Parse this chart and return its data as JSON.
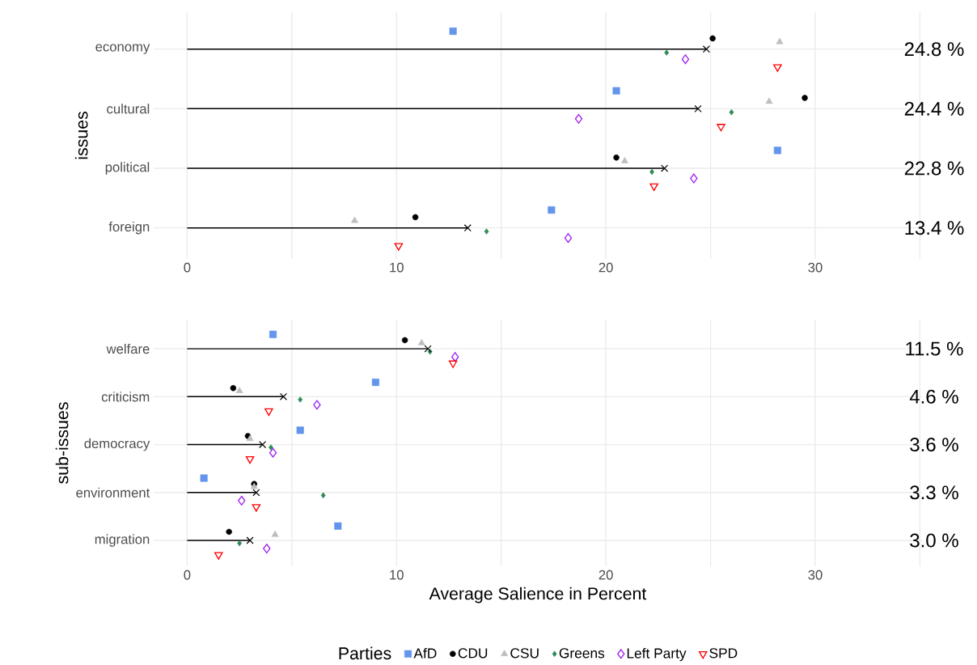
{
  "chart_data": [
    {
      "type": "lollipop",
      "orientation": "horizontal",
      "ylabel": "issues",
      "categories": [
        "economy",
        "cultural",
        "political",
        "foreign"
      ],
      "xlim": [
        -1.6,
        35.1
      ],
      "xticks": [
        0,
        {
          "value": 5,
          "label": null
        },
        10,
        {
          "value": 15,
          "label": null
        },
        20,
        {
          "value": 25,
          "label": null
        },
        30,
        {
          "value": 35,
          "label": null
        }
      ],
      "grid": true,
      "series": [
        {
          "type": "scatter",
          "color": "#6495ed",
          "marker": "square",
          "values": [
            12.7,
            20.5,
            28.2,
            17.4
          ]
        },
        {
          "type": "scatter",
          "color": "#000000",
          "marker": "circle",
          "values": [
            25.1,
            29.5,
            20.5,
            10.9
          ]
        },
        {
          "type": "scatter",
          "color": "#bebebe",
          "marker": "triangle",
          "values": [
            28.3,
            27.8,
            20.9,
            8.0
          ]
        },
        {
          "type": "scatter",
          "color": "#2e8b57",
          "marker": "diamond",
          "values": [
            22.9,
            26.0,
            22.2,
            14.3
          ]
        },
        {
          "type": "scatter",
          "color": "#a020f0",
          "marker": "diamond-open",
          "values": [
            23.8,
            18.7,
            24.2,
            18.2
          ]
        },
        {
          "type": "scatter",
          "color": "#ff0000",
          "marker": "triangle-down-open",
          "values": [
            28.2,
            25.5,
            22.3,
            10.1
          ]
        },
        {
          "color": "#000000",
          "marker": "cross",
          "values": [
            24.8,
            24.4,
            22.8,
            13.4
          ],
          "value_labels": [
            "24.8 %",
            "24.4 %",
            "22.8 %",
            "13.4 %"
          ]
        }
      ]
    },
    {
      "type": "lollipop",
      "orientation": "horizontal",
      "ylabel": "sub-issues",
      "xlabel": "Average Salience in Percent",
      "categories": [
        "welfare",
        "criticism",
        "democracy",
        "environment",
        "migration"
      ],
      "xlim": [
        -1.6,
        35.1
      ],
      "xticks": [
        0,
        {
          "value": 5,
          "label": null
        },
        10,
        {
          "value": 15,
          "label": null
        },
        20,
        {
          "value": 25,
          "label": null
        },
        30,
        {
          "value": 35,
          "label": null
        }
      ],
      "grid": true,
      "legend": "bottom",
      "legend_title": "Parties",
      "series": [
        {
          "type": "scatter",
          "name": "AfD",
          "color": "#6495ed",
          "marker": "square",
          "values": [
            4.1,
            9.0,
            5.4,
            0.8,
            7.2
          ]
        },
        {
          "type": "scatter",
          "name": "CDU",
          "color": "#000000",
          "marker": "circle",
          "values": [
            10.4,
            2.2,
            2.9,
            3.2,
            2.0
          ]
        },
        {
          "type": "scatter",
          "name": "CSU",
          "color": "#bebebe",
          "marker": "triangle",
          "values": [
            11.2,
            2.5,
            3.0,
            3.2,
            4.2
          ]
        },
        {
          "type": "scatter",
          "name": "Greens",
          "color": "#2e8b57",
          "marker": "diamond",
          "values": [
            11.6,
            5.4,
            4.0,
            6.5,
            2.5
          ]
        },
        {
          "type": "scatter",
          "name": "Left Party",
          "color": "#a020f0",
          "marker": "diamond-open",
          "values": [
            12.8,
            6.2,
            4.1,
            2.6,
            3.8
          ]
        },
        {
          "type": "scatter",
          "name": "SPD",
          "color": "#ff0000",
          "marker": "triangle-down-open",
          "values": [
            12.7,
            3.9,
            3.0,
            3.3,
            1.5
          ]
        },
        {
          "color": "#000000",
          "marker": "cross",
          "values": [
            11.5,
            4.6,
            3.6,
            3.3,
            3.0
          ],
          "value_labels": [
            "11.5 %",
            "4.6 %",
            "3.6 %",
            "3.3 %",
            "3.0 %"
          ]
        }
      ]
    }
  ]
}
